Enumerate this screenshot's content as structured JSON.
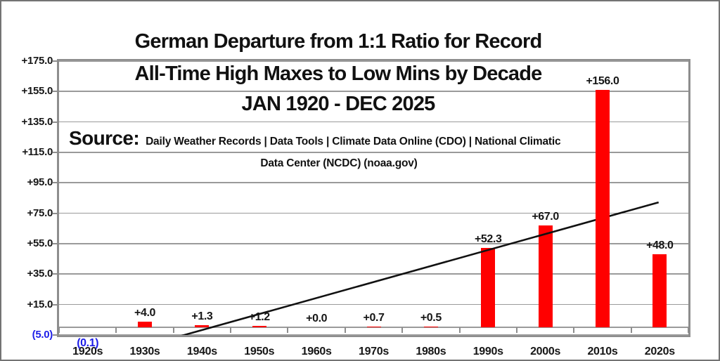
{
  "title": {
    "line1": "German Departure from 1:1 Ratio for Record",
    "line2": "All-Time High Maxes to Low Mins by Decade",
    "line3": "JAN 1920 - DEC 2025"
  },
  "source": {
    "label": "Source:",
    "line1": "Daily Weather Records | Data Tools | Climate Data Online (CDO) | National Climatic",
    "line2": "Data Center (NCDC) (noaa.gov)"
  },
  "chart_data": {
    "type": "bar",
    "title": "German Departure from 1:1 Ratio for Record All-Time High Maxes to Low Mins by Decade JAN 1920 - DEC 2025",
    "categories": [
      "1920s",
      "1930s",
      "1940s",
      "1950s",
      "1960s",
      "1970s",
      "1980s",
      "1990s",
      "2000s",
      "2010s",
      "2020s"
    ],
    "values": [
      -0.1,
      4.0,
      1.3,
      1.2,
      0.0,
      0.7,
      0.5,
      52.3,
      67.0,
      156.0,
      48.0
    ],
    "data_labels": [
      "(0.1)",
      "+4.0",
      "+1.3",
      "+1.2",
      "+0.0",
      "+0.7",
      "+0.5",
      "+52.3",
      "+67.0",
      "+156.0",
      "+48.0"
    ],
    "xlabel": "",
    "ylabel": "",
    "ylim": [
      -5.0,
      175.0
    ],
    "ytick_step": 20,
    "yticks": [
      {
        "label": "+175.0",
        "value": 175.0
      },
      {
        "label": "+155.0",
        "value": 155.0
      },
      {
        "label": "+135.0",
        "value": 135.0
      },
      {
        "label": "+115.0",
        "value": 115.0
      },
      {
        "label": "+95.0",
        "value": 95.0
      },
      {
        "label": "+75.0",
        "value": 75.0
      },
      {
        "label": "+55.0",
        "value": 55.0
      },
      {
        "label": "+35.0",
        "value": 35.0
      },
      {
        "label": "+15.0",
        "value": 15.0
      },
      {
        "label": "(5.0)",
        "value": -5.0,
        "negative": true
      }
    ],
    "grid": true,
    "legend": false,
    "bar_color": "#ff0000",
    "positive_label_color": "#161616",
    "negative_label_color": "#1d1de8",
    "gridline_color": "#9a9a9a",
    "axis_frame_color": "#8d8d8d",
    "trendline": {
      "present": true,
      "color": "#111111",
      "start": {
        "category_frac": 2.14,
        "value": -5.5
      },
      "end": {
        "category_frac": 10.48,
        "value": 82.2
      }
    },
    "trendline_behind_categories": [
      "2010s"
    ]
  }
}
